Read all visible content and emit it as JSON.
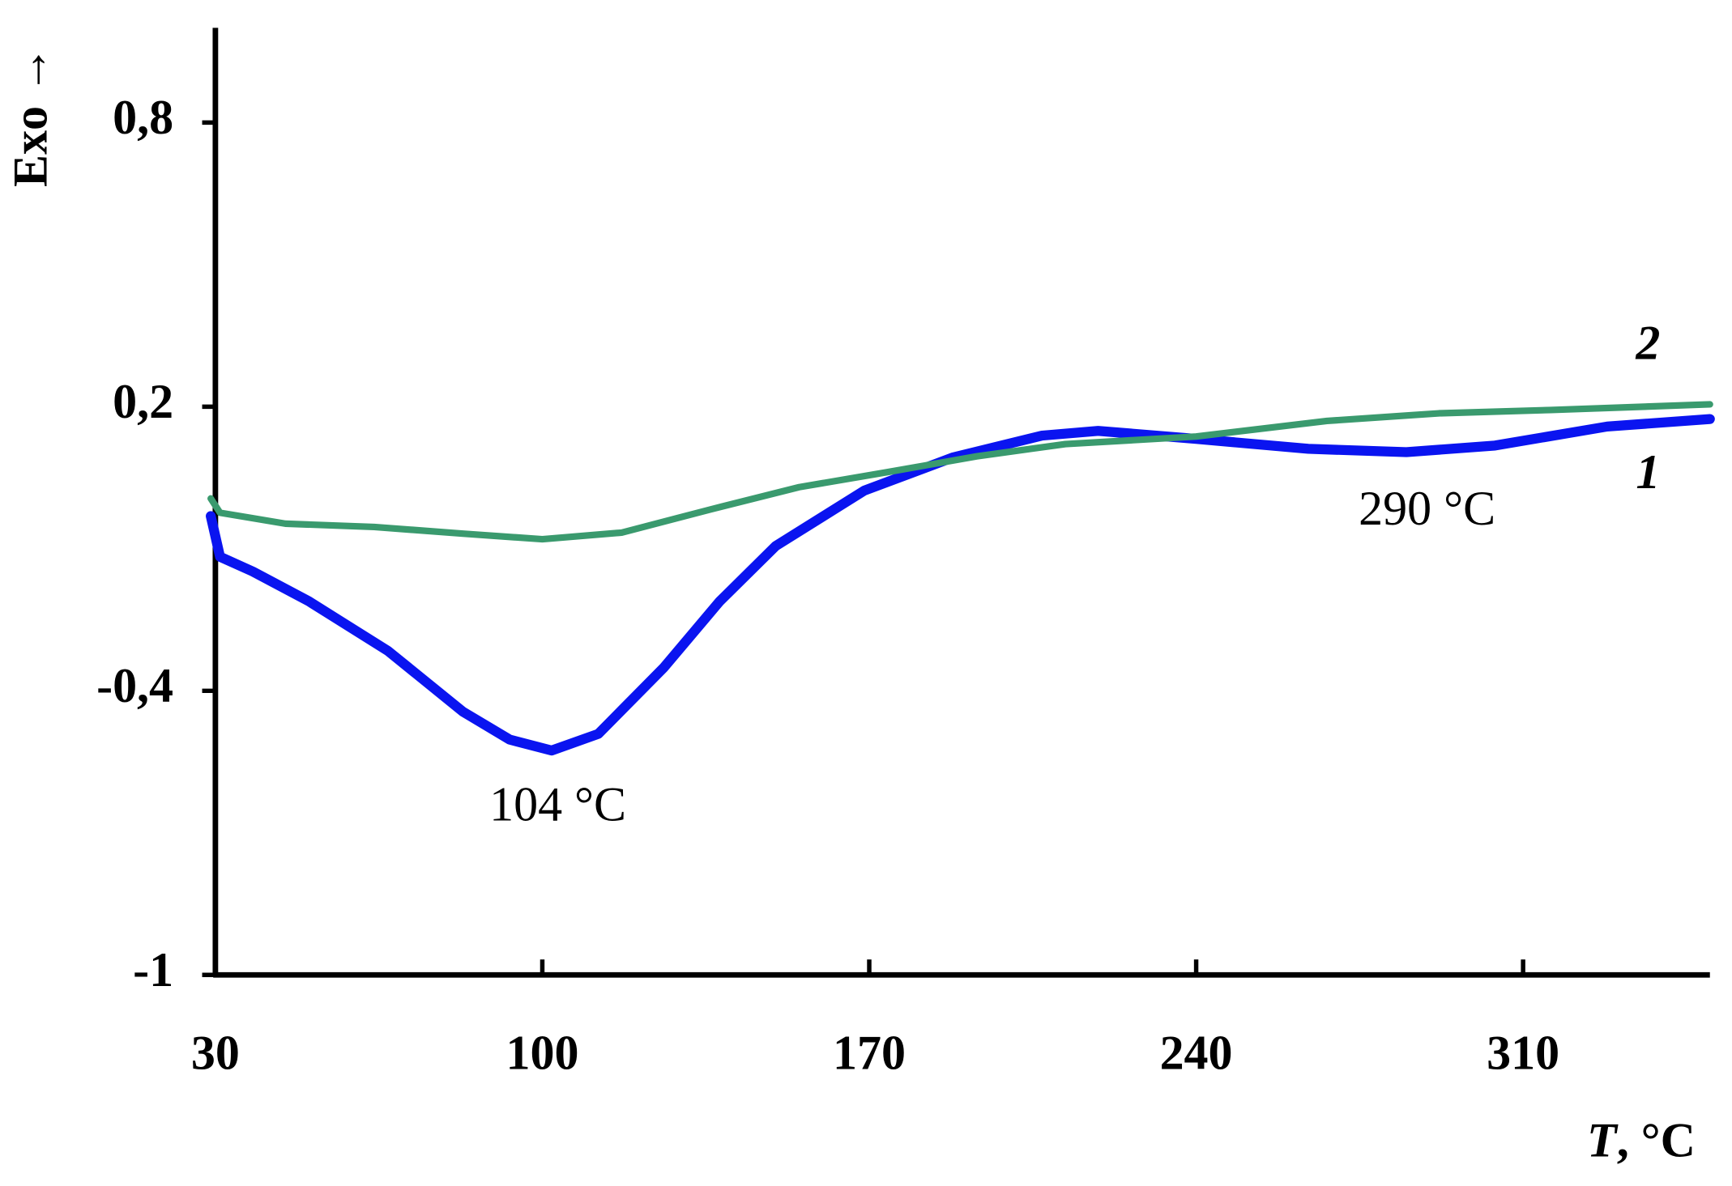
{
  "chart_data": {
    "type": "line",
    "y_label": "Exo →",
    "x_label": {
      "symbol": "T",
      "unit": ", °C"
    },
    "xlim": [
      30,
      350
    ],
    "xticks": [
      30,
      100,
      170,
      240,
      310
    ],
    "ylim": [
      -1,
      1
    ],
    "yticks": [
      {
        "value": 0.8,
        "label": "0,8"
      },
      {
        "value": 0.2,
        "label": "0,2"
      },
      {
        "value": -0.4,
        "label": "-0,4"
      },
      -1
    ],
    "series": [
      {
        "name": "1",
        "color": "#0a14f0",
        "x": [
          29,
          31,
          38,
          50,
          67,
          83,
          93,
          102,
          112,
          126,
          138,
          150,
          169,
          188,
          207,
          219,
          240,
          264,
          285,
          304,
          328,
          350
        ],
        "values": [
          -0.031,
          -0.117,
          -0.148,
          -0.211,
          -0.316,
          -0.444,
          -0.503,
          -0.526,
          -0.491,
          -0.351,
          -0.211,
          -0.094,
          0.023,
          0.093,
          0.139,
          0.149,
          0.132,
          0.111,
          0.104,
          0.118,
          0.158,
          0.174
        ]
      },
      {
        "name": "2",
        "color": "#3a9a6e",
        "x": [
          29,
          31,
          45,
          64,
          83,
          100,
          117,
          136,
          155,
          174,
          193,
          212,
          240,
          268,
          292,
          316,
          350
        ],
        "values": [
          0.006,
          -0.024,
          -0.047,
          -0.054,
          -0.068,
          -0.08,
          -0.066,
          -0.017,
          0.03,
          0.062,
          0.095,
          0.121,
          0.137,
          0.17,
          0.186,
          0.193,
          0.205
        ]
      }
    ],
    "annotations": [
      "104 °C",
      "290 °C"
    ]
  }
}
